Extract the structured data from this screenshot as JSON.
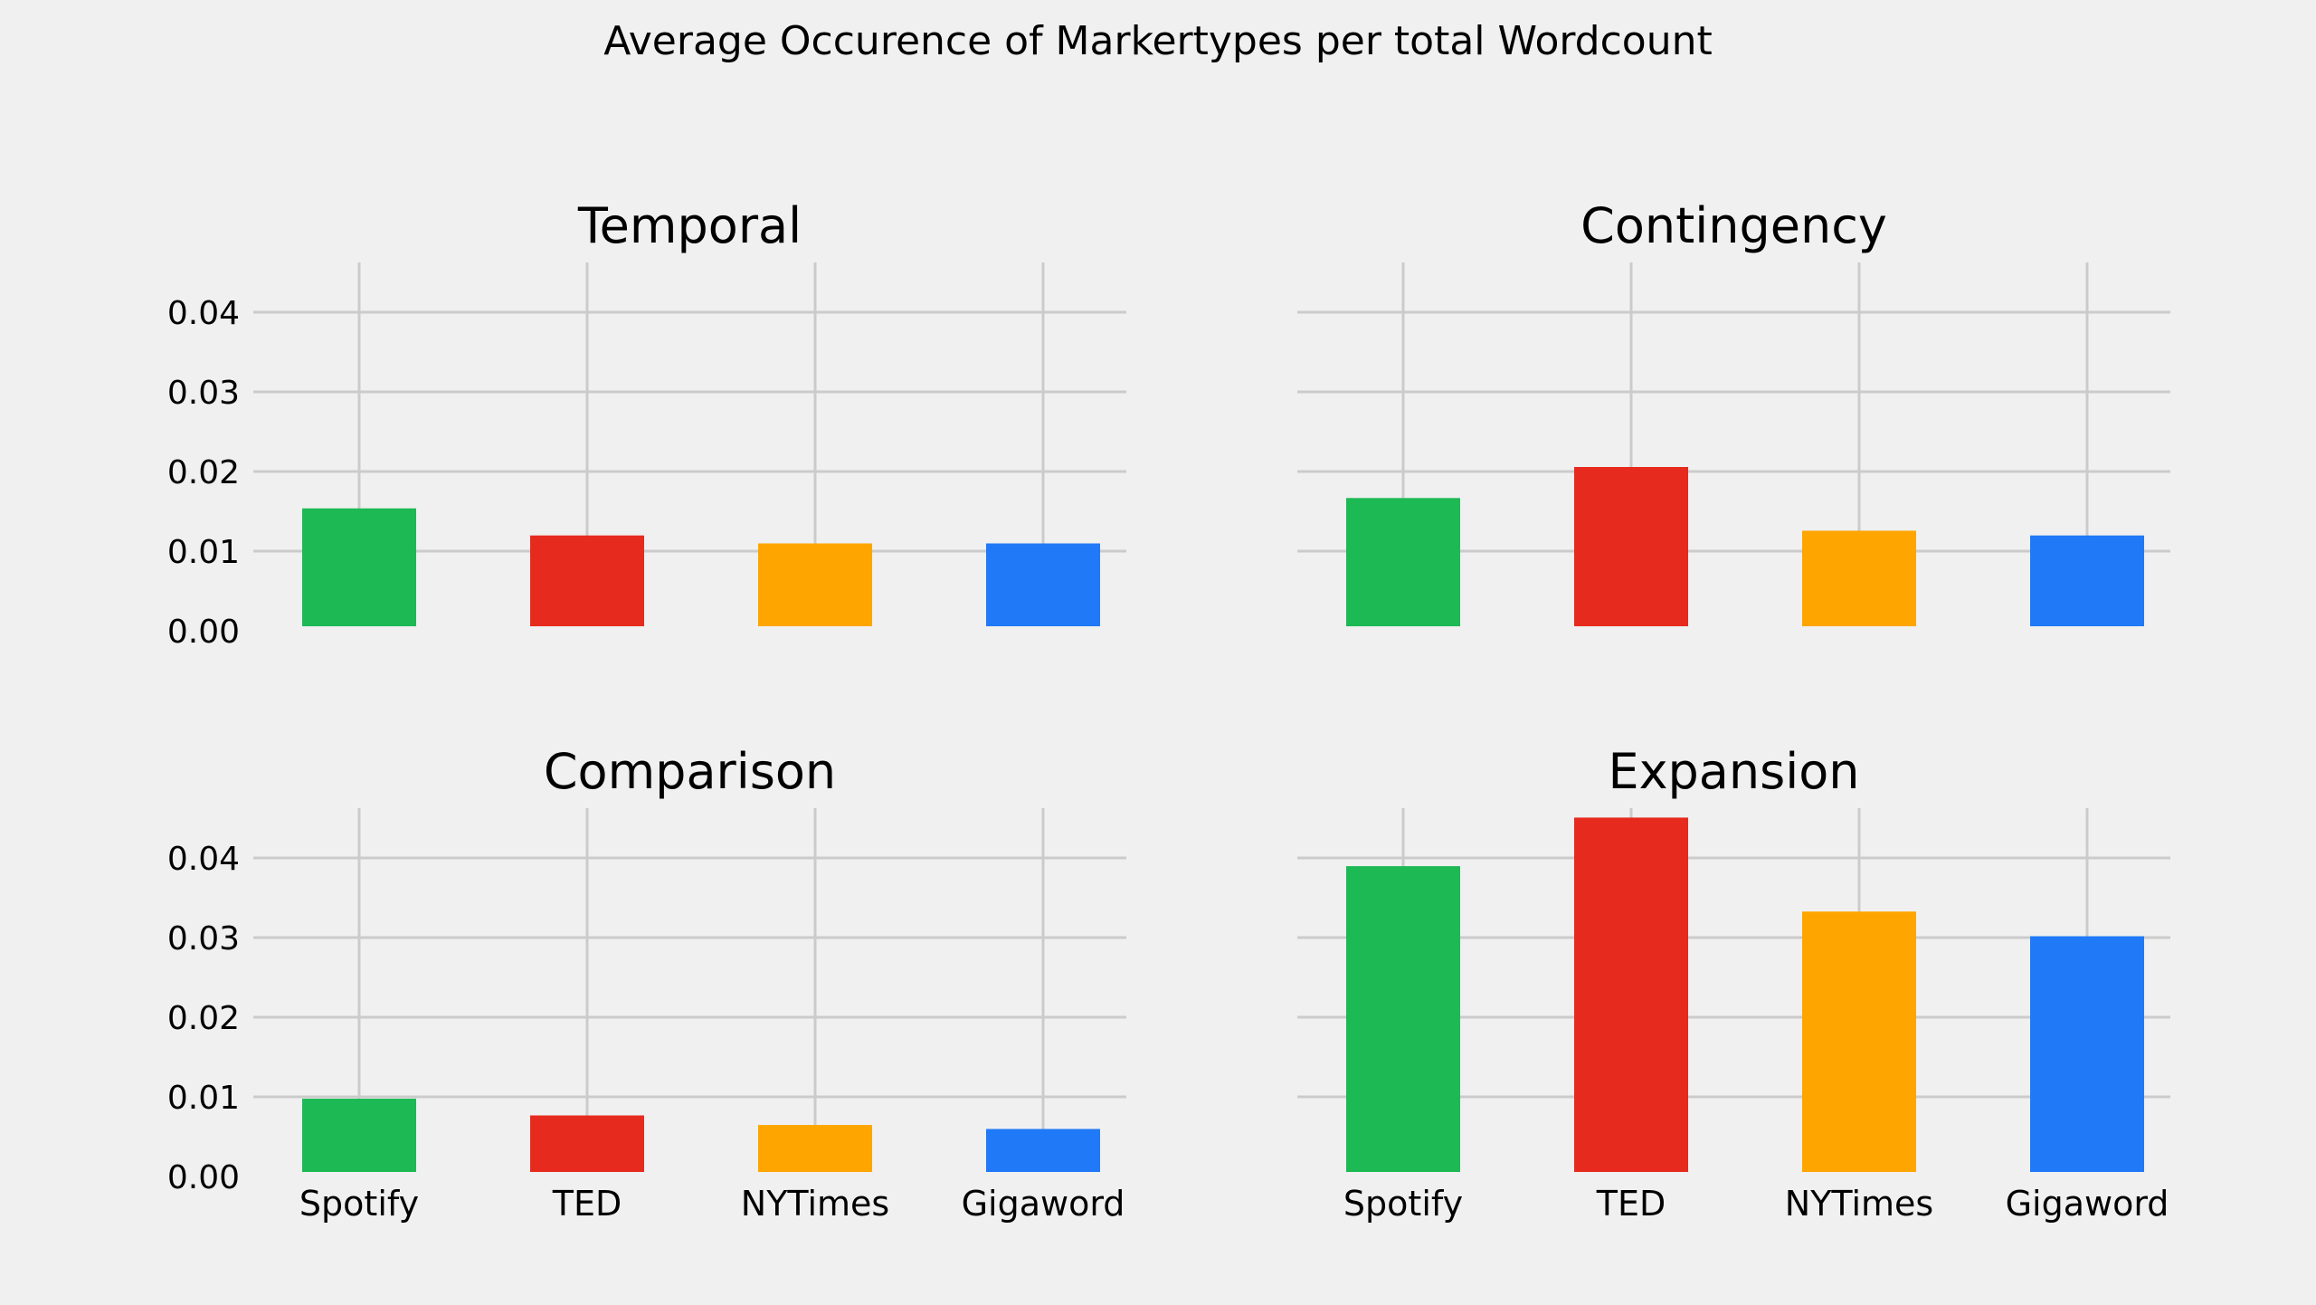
{
  "chart_data": {
    "type": "bar",
    "title": "Average Occurence of Markertypes per total Wordcount",
    "categories": [
      "Spotify",
      "TED",
      "NYTimes",
      "Gigaword"
    ],
    "colors": [
      "#1db954",
      "#e62b1e",
      "#ffa500",
      "#2079f7"
    ],
    "ylim": [
      0,
      0.046
    ],
    "yticks": [
      "0.00",
      "0.01",
      "0.02",
      "0.03",
      "0.04"
    ],
    "grid": true,
    "panels": [
      {
        "title": "Temporal",
        "values": [
          0.0148,
          0.0114,
          0.0104,
          0.0104
        ]
      },
      {
        "title": "Contingency",
        "values": [
          0.0161,
          0.02,
          0.012,
          0.0114
        ]
      },
      {
        "title": "Comparison",
        "values": [
          0.0092,
          0.0071,
          0.0059,
          0.0054
        ]
      },
      {
        "title": "Expansion",
        "values": [
          0.0384,
          0.0445,
          0.0327,
          0.0296
        ]
      }
    ]
  }
}
